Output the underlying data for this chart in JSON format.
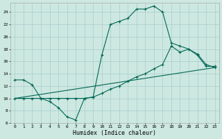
{
  "xlabel": "Humidex (Indice chaleur)",
  "bg_color": "#cce8e0",
  "line_color": "#006655",
  "grid_color": "#aacccc",
  "xlim": [
    -0.5,
    23.5
  ],
  "ylim": [
    6,
    25.5
  ],
  "yticks": [
    6,
    8,
    10,
    12,
    14,
    16,
    18,
    20,
    22,
    24
  ],
  "xticks": [
    0,
    1,
    2,
    3,
    4,
    5,
    6,
    7,
    8,
    9,
    10,
    11,
    12,
    13,
    14,
    15,
    16,
    17,
    18,
    19,
    20,
    21,
    22,
    23
  ],
  "series1_x": [
    0,
    1,
    2,
    3,
    4,
    5,
    6,
    7,
    8,
    9,
    10,
    11,
    12,
    13,
    14,
    15,
    16,
    17,
    18,
    19,
    20,
    21,
    22,
    23
  ],
  "series1_y": [
    13.0,
    13.0,
    12.2,
    10.0,
    9.5,
    8.5,
    7.0,
    6.5,
    10.0,
    10.2,
    17.0,
    22.0,
    22.5,
    23.0,
    24.5,
    24.5,
    25.0,
    24.0,
    19.0,
    18.5,
    18.0,
    17.2,
    15.5,
    15.0
  ],
  "series2_x": [
    0,
    1,
    2,
    3,
    4,
    5,
    6,
    7,
    8,
    9,
    10,
    11,
    12,
    13,
    14,
    15,
    16,
    17,
    18,
    19,
    20,
    21,
    22,
    23
  ],
  "series2_y": [
    10.0,
    10.0,
    10.0,
    10.0,
    10.0,
    10.0,
    10.0,
    10.0,
    10.0,
    10.2,
    10.8,
    11.5,
    12.0,
    12.8,
    13.5,
    14.0,
    14.8,
    15.5,
    18.5,
    17.5,
    18.0,
    17.0,
    15.2,
    15.2
  ],
  "series3_x": [
    0,
    23
  ],
  "series3_y": [
    10.0,
    15.0
  ]
}
